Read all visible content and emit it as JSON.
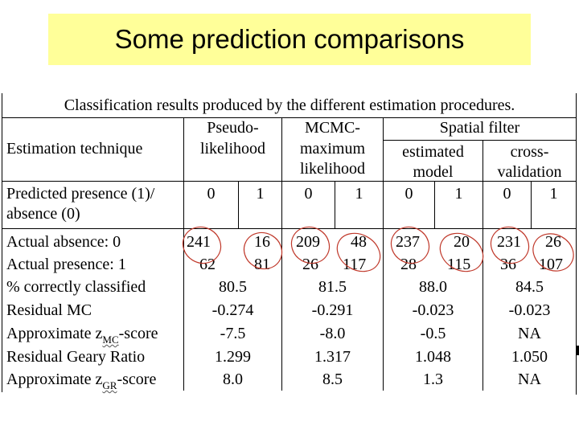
{
  "title": "Some prediction comparisons",
  "table": {
    "caption": "Classification results produced by the different estimation procedures.",
    "header": {
      "estimation_technique": "Estimation technique",
      "pseudo_likelihood_1": "Pseudo-",
      "pseudo_likelihood_2": "likelihood",
      "mcmc_1": "MCMC-",
      "mcmc_2": "maximum",
      "mcmc_3": "likelihood",
      "spatial_filter": "Spatial filter",
      "estimated_model_1": "estimated",
      "estimated_model_2": "model",
      "cross_validation_1": "cross-",
      "cross_validation_2": "validation",
      "predicted_1": "Predicted presence (1)/",
      "predicted_2": "absence (0)",
      "zero": "0",
      "one": "1"
    },
    "rows": {
      "actual_absence": {
        "label": "Actual absence: 0",
        "values": [
          "241",
          "16",
          "209",
          "48",
          "237",
          "20",
          "231",
          "26"
        ]
      },
      "actual_presence": {
        "label": "Actual presence: 1",
        "values": [
          "62",
          "81",
          "26",
          "117",
          "28",
          "115",
          "36",
          "107"
        ]
      },
      "pct_correct": {
        "label": "% correctly classified",
        "values": [
          "80.5",
          "81.5",
          "88.0",
          "84.5"
        ]
      },
      "residual_mc": {
        "label": "Residual MC",
        "values": [
          "-0.274",
          "-0.291",
          "-0.023",
          "-0.023"
        ]
      },
      "approx_zmc": {
        "label_prefix": "Approximate z",
        "label_sub": "MC",
        "label_suffix": "-score",
        "values": [
          "-7.5",
          "-8.0",
          "-0.5",
          "NA"
        ]
      },
      "residual_geary": {
        "label": "Residual Geary Ratio",
        "values": [
          "1.299",
          "1.317",
          "1.048",
          "1.050"
        ]
      },
      "approx_zgr": {
        "label_prefix": "Approximate z",
        "label_sub": "GR",
        "label_suffix": "-score",
        "values": [
          "8.0",
          "8.5",
          "1.3",
          "NA"
        ]
      }
    }
  },
  "colors": {
    "title_bg": "#ffff99",
    "oval_stroke": "#c0392b"
  }
}
